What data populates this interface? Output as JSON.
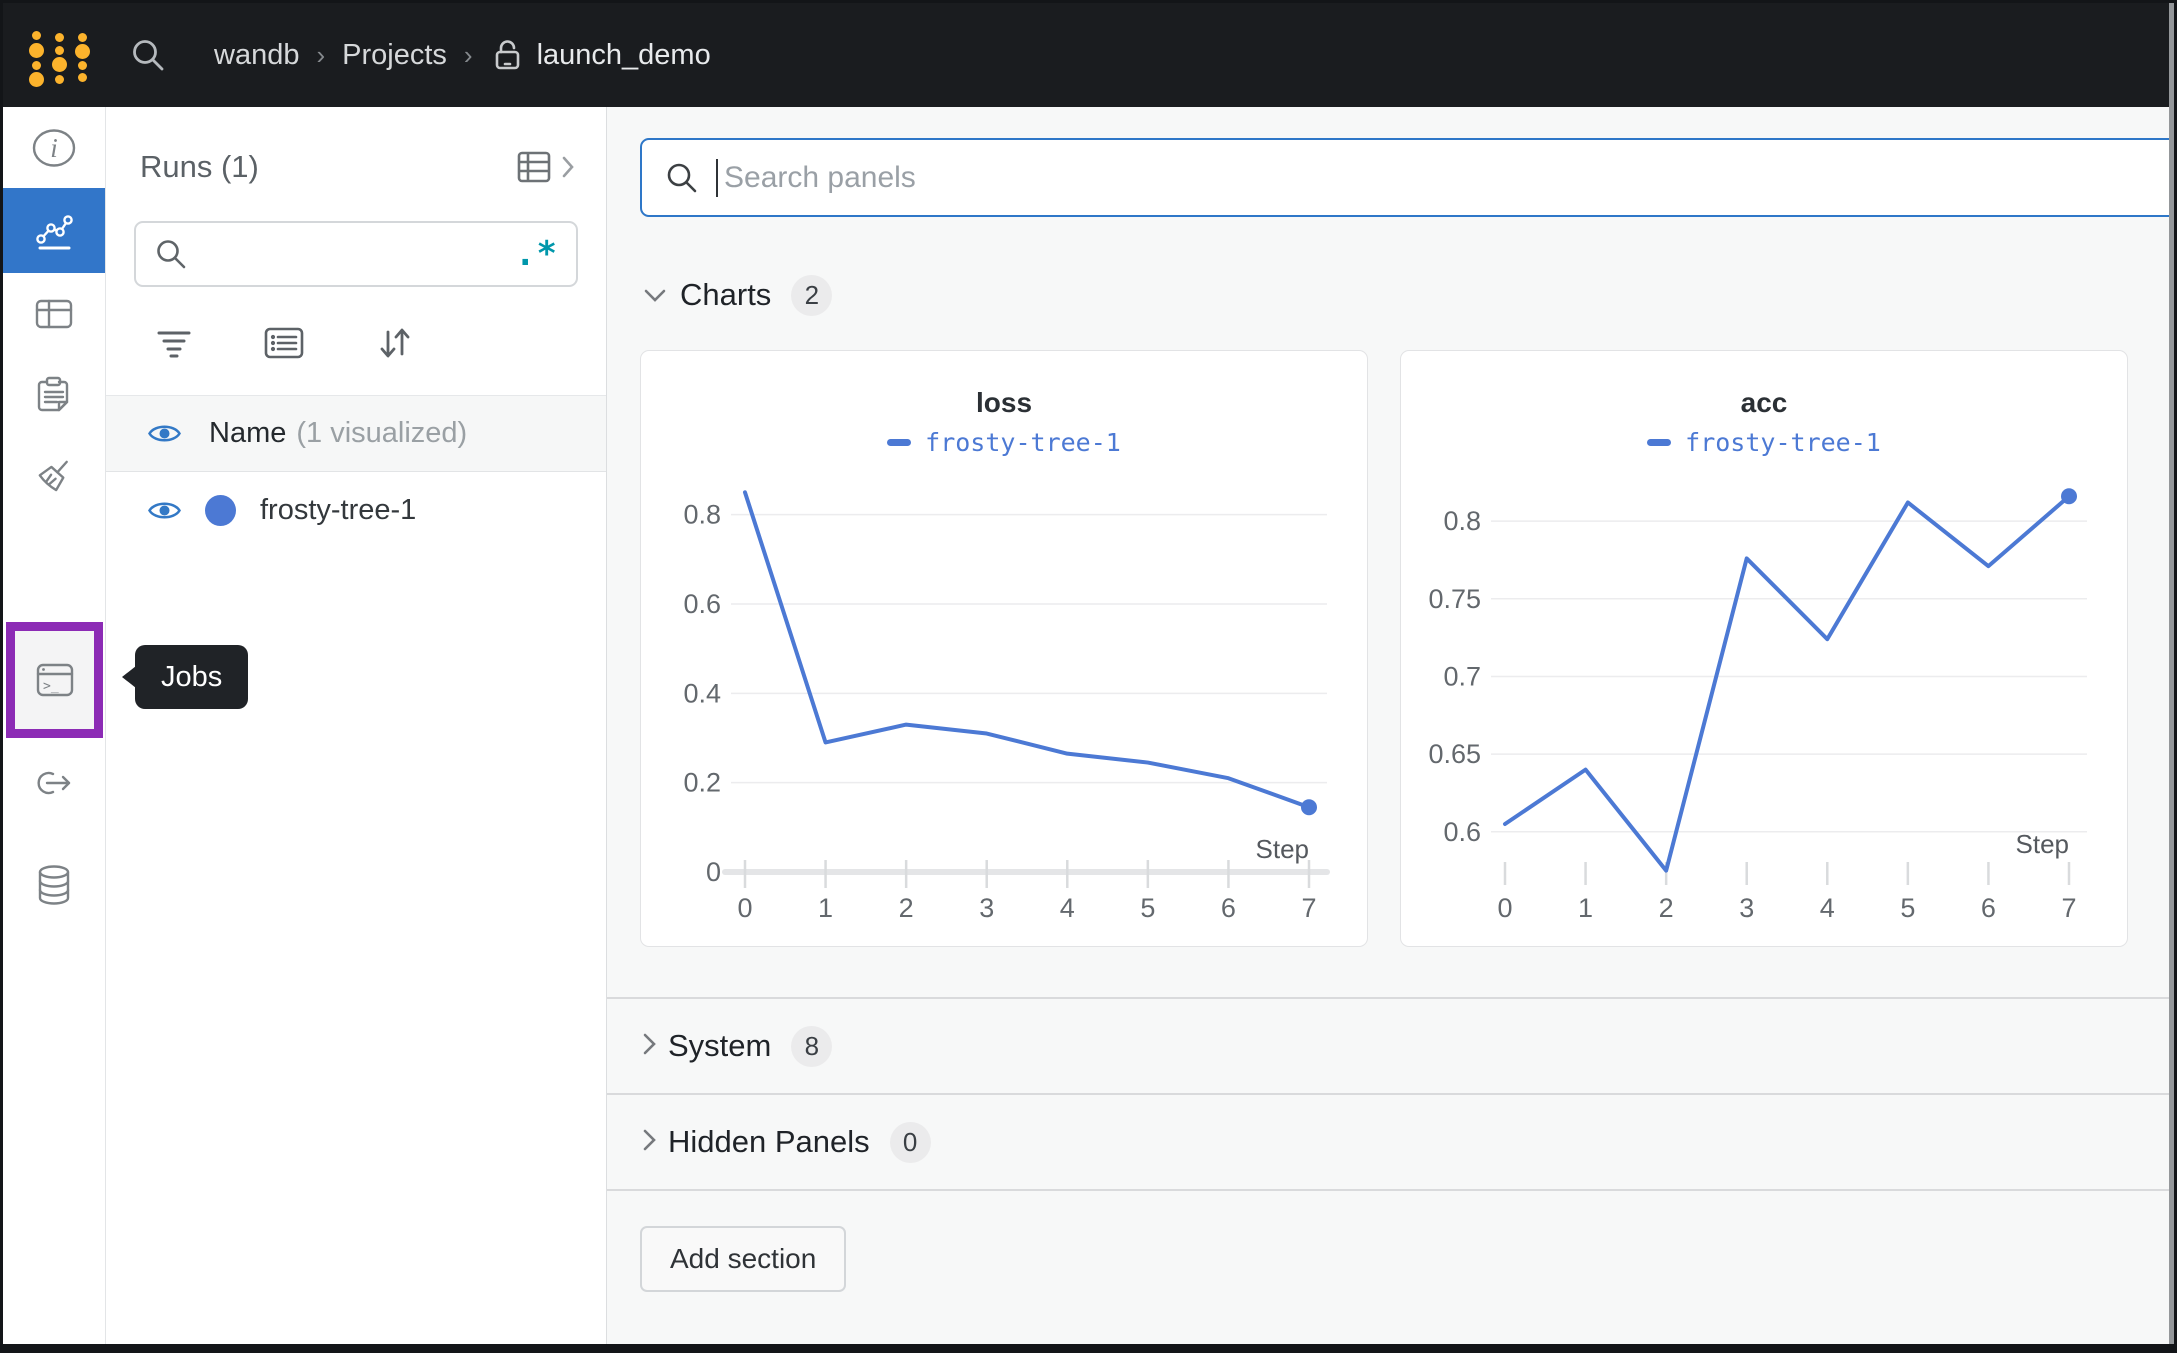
{
  "colors": {
    "topbar_bg": "#1a1c1f",
    "accent_blue": "#3276c9",
    "series_blue": "#4c79d4",
    "brand_gold": "#fcb32c",
    "annotation_purple": "#8c2bb5",
    "regex_teal": "#0097ab",
    "focus_border": "#2e77c8"
  },
  "topbar": {
    "breadcrumb": {
      "team": "wandb",
      "section": "Projects",
      "project": "launch_demo",
      "separator": "›"
    },
    "icons": [
      "search-icon",
      "lock-icon",
      "wandb-logo"
    ]
  },
  "sidebar": {
    "tooltip": "Jobs",
    "items": [
      {
        "icon": "info-icon",
        "active": false
      },
      {
        "icon": "line-chart-icon",
        "active": true
      },
      {
        "icon": "table-icon",
        "active": false
      },
      {
        "icon": "clipboard-icon",
        "active": false
      },
      {
        "icon": "broom-icon",
        "active": false
      },
      {
        "icon": "terminal-icon",
        "active": false,
        "highlighted": true,
        "tooltip": "Jobs"
      },
      {
        "icon": "link-arrow-icon",
        "active": false
      },
      {
        "icon": "database-icon",
        "active": false
      }
    ]
  },
  "runs_panel": {
    "title": "Runs (1)",
    "search_value": "",
    "regex_glyph": ".*",
    "icons": [
      "table-chevron-icon",
      "filter-icon",
      "list-icon",
      "sort-icon",
      "eye-icon"
    ],
    "header": {
      "label": "Name",
      "note": "(1 visualized)"
    },
    "runs": [
      {
        "name": "frosty-tree-1",
        "color": "#4c79d4",
        "visible": true
      }
    ]
  },
  "main": {
    "search_placeholder": "Search panels",
    "sections": {
      "charts": {
        "label": "Charts",
        "count": "2"
      },
      "system": {
        "label": "System",
        "count": "8"
      },
      "hidden": {
        "label": "Hidden Panels",
        "count": "0"
      }
    },
    "add_section_label": "Add section"
  },
  "chart_data": [
    {
      "type": "line",
      "title": "loss",
      "xlabel": "Step",
      "x": [
        0,
        1,
        2,
        3,
        4,
        5,
        6,
        7
      ],
      "xticks": [
        0,
        1,
        2,
        3,
        4,
        5,
        6,
        7
      ],
      "series": [
        {
          "name": "frosty-tree-1",
          "color": "#4c79d4",
          "values": [
            0.85,
            0.29,
            0.33,
            0.31,
            0.265,
            0.245,
            0.21,
            0.145
          ]
        }
      ],
      "xlim": [
        0,
        7
      ],
      "ylim": [
        0,
        0.9
      ],
      "yticks": [
        0,
        0.2,
        0.4,
        0.6,
        0.8
      ],
      "grid": true,
      "zero_baseline": true,
      "end_marker": true,
      "legend_position": "top"
    },
    {
      "type": "line",
      "title": "acc",
      "xlabel": "Step",
      "x": [
        0,
        1,
        2,
        3,
        4,
        5,
        6,
        7
      ],
      "xticks": [
        0,
        1,
        2,
        3,
        4,
        5,
        6,
        7
      ],
      "series": [
        {
          "name": "frosty-tree-1",
          "color": "#4c79d4",
          "values": [
            0.605,
            0.64,
            0.575,
            0.776,
            0.724,
            0.812,
            0.771,
            0.816
          ]
        }
      ],
      "xlim": [
        0,
        7
      ],
      "ylim": [
        0.5625,
        0.84
      ],
      "yticks": [
        0.6,
        0.65,
        0.7,
        0.75,
        0.8
      ],
      "grid": true,
      "zero_baseline": false,
      "end_marker": true,
      "legend_position": "top"
    }
  ]
}
